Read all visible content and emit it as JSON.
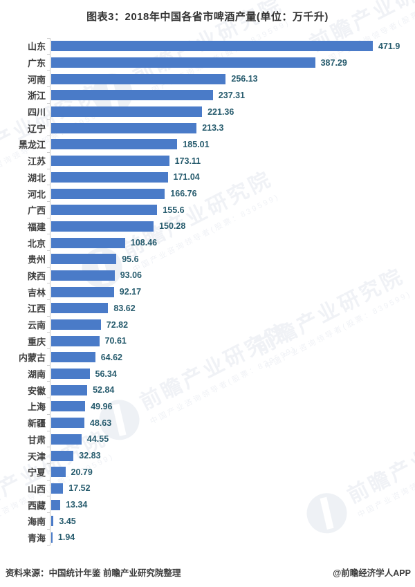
{
  "title": "图表3：2018年中国各省市啤酒产量(单位：万千升)",
  "footer": {
    "source": "资料来源：中国统计年鉴 前瞻产业研究院整理",
    "credit": "@前瞻经济学人APP"
  },
  "watermark": {
    "text": "前瞻产业研究院",
    "subtext": "中国产业咨询领导者(股票：839599)"
  },
  "colors": {
    "bar": "#4a7bc8",
    "value_label": "#265b6d",
    "category_label": "#3f3f3f",
    "axis_line": "#c9c9c9",
    "title_text": "#333333",
    "footer_text": "#3c3c3c",
    "watermark": "#f0f2f6"
  },
  "chart_data": {
    "type": "bar",
    "orientation": "horizontal",
    "title": "图表3：2018年中国各省市啤酒产量(单位：万千升)",
    "unit": "万千升",
    "year": "2018",
    "categories": [
      "山东",
      "广东",
      "河南",
      "浙江",
      "四川",
      "辽宁",
      "黑龙江",
      "江苏",
      "湖北",
      "河北",
      "广西",
      "福建",
      "北京",
      "贵州",
      "陕西",
      "吉林",
      "江西",
      "云南",
      "重庆",
      "内蒙古",
      "湖南",
      "安徽",
      "上海",
      "新疆",
      "甘肃",
      "天津",
      "宁夏",
      "山西",
      "西藏",
      "海南",
      "青海"
    ],
    "values": [
      471.9,
      387.29,
      256.13,
      237.31,
      221.36,
      213.3,
      185.01,
      173.11,
      171.04,
      166.76,
      155.6,
      150.28,
      108.46,
      95.6,
      93.06,
      92.17,
      83.62,
      72.82,
      70.61,
      64.62,
      56.34,
      52.84,
      49.96,
      48.63,
      44.55,
      32.83,
      20.79,
      17.52,
      13.34,
      3.45,
      1.94
    ],
    "xlim": [
      0,
      480
    ],
    "grid": false,
    "legend": false,
    "value_labels_shown": true,
    "sorted": "descending"
  }
}
